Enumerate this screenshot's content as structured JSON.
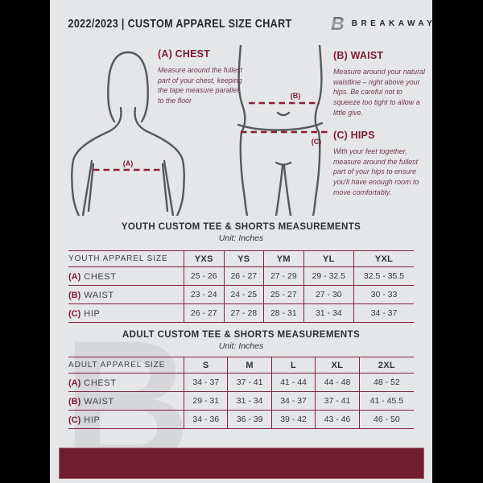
{
  "header": {
    "title": "2022/2023  |  CUSTOM APPAREL SIZE CHART",
    "brand": "BREAKAWAY",
    "logo_letter": "B"
  },
  "guide": {
    "chest": {
      "heading": "(A) CHEST",
      "body": "Measure around the fullest part of your chest, keeping the tape measure parallel to the floor"
    },
    "waist": {
      "heading": "(B) WAIST",
      "body": "Measure around your natural waistline – right above your hips. Be careful not to squeeze too tight to allow a little give."
    },
    "hips": {
      "heading": "(C) HIPS",
      "body": "With your feet together, measure around the fullest part of your hips to ensure you'll have enough room to move comfortably."
    },
    "labels": {
      "chest": "(A)",
      "waist": "(B)",
      "hips": "(C)"
    }
  },
  "youth_table": {
    "title": "YOUTH CUSTOM TEE & SHORTS MEASUREMENTS",
    "unit": "Unit: Inches",
    "header": [
      "YOUTH APPAREL SIZE",
      "YXS",
      "YS",
      "YM",
      "YL",
      "YXL"
    ],
    "rows": [
      {
        "prefix": "(A)",
        "label": "CHEST",
        "values": [
          "25 - 26",
          "26 - 27",
          "27 - 29",
          "29 - 32.5",
          "32.5 - 35.5"
        ]
      },
      {
        "prefix": "(B)",
        "label": "WAIST",
        "values": [
          "23 - 24",
          "24 - 25",
          "25 - 27",
          "27 - 30",
          "30 - 33"
        ]
      },
      {
        "prefix": "(C)",
        "label": "HIP",
        "values": [
          "26 - 27",
          "27 - 28",
          "28 - 31",
          "31 - 34",
          "34 - 37"
        ]
      }
    ]
  },
  "adult_table": {
    "title": "ADULT CUSTOM TEE & SHORTS MEASUREMENTS",
    "unit": "Unit: Inches",
    "header": [
      "ADULT APPAREL SIZE",
      "S",
      "M",
      "L",
      "XL",
      "2XL"
    ],
    "rows": [
      {
        "prefix": "(A)",
        "label": "CHEST",
        "values": [
          "34 - 37",
          "37 - 41",
          "41 - 44",
          "44 - 48",
          "48 - 52"
        ]
      },
      {
        "prefix": "(B)",
        "label": "WAIST",
        "values": [
          "29 - 31",
          "31 - 34",
          "34 - 37",
          "37 - 41",
          "41 - 45.5"
        ]
      },
      {
        "prefix": "(C)",
        "label": "HIP",
        "values": [
          "34 - 36",
          "36 - 39",
          "39 - 42",
          "43 - 46",
          "46 - 50"
        ]
      }
    ]
  },
  "watermark": "B",
  "colors": {
    "page_background": "#e5e6e8",
    "outer_background": "#000000",
    "maroon_bar": "#701c31",
    "table_border": "#7c2342",
    "accent_red": "#7b1c33",
    "body_outline_gray": "#55585c",
    "text_dark": "#2c2f33"
  }
}
